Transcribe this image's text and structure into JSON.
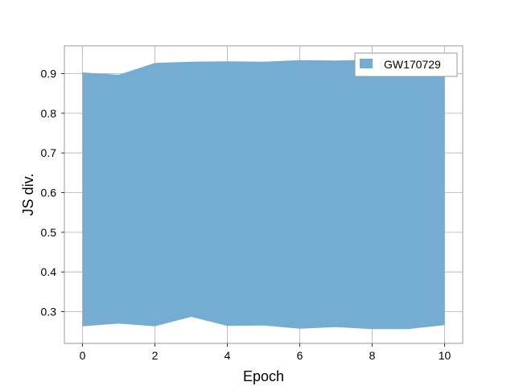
{
  "chart_data": {
    "type": "area",
    "title": "",
    "xlabel": "Epoch",
    "ylabel": "JS div.",
    "x": [
      0,
      1,
      2,
      3,
      4,
      5,
      6,
      7,
      8,
      9,
      10
    ],
    "xlim": [
      -0.5,
      10.5
    ],
    "ylim": [
      0.22,
      0.97
    ],
    "xticks": [
      0,
      2,
      4,
      6,
      8,
      10
    ],
    "yticks": [
      0.3,
      0.4,
      0.5,
      0.6,
      0.7,
      0.8,
      0.9
    ],
    "grid": true,
    "legend_position": "top-right",
    "series": [
      {
        "name": "GW170729",
        "color": "#75acd1",
        "upper": [
          0.903,
          0.897,
          0.927,
          0.93,
          0.931,
          0.93,
          0.934,
          0.933,
          0.935,
          0.933,
          0.932
        ],
        "lower": [
          0.263,
          0.27,
          0.263,
          0.287,
          0.264,
          0.265,
          0.257,
          0.261,
          0.256,
          0.256,
          0.266
        ]
      }
    ]
  }
}
